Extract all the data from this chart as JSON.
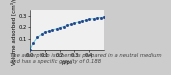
{
  "title": "",
  "xlabel": "p/p₀",
  "ylabel": "Volume adsorbed [cm³/g]",
  "caption": "The adsorption isotherm is prepared in a neutral medium\nand has a specific gravity of 0.188",
  "x_data": [
    0.0,
    0.02,
    0.05,
    0.08,
    0.1,
    0.13,
    0.15,
    0.18,
    0.2,
    0.23,
    0.25,
    0.28,
    0.3,
    0.33,
    0.35,
    0.38,
    0.4,
    0.43,
    0.45,
    0.48,
    0.5
  ],
  "y_data": [
    0.0,
    0.06,
    0.11,
    0.14,
    0.155,
    0.165,
    0.175,
    0.185,
    0.195,
    0.205,
    0.215,
    0.225,
    0.235,
    0.245,
    0.253,
    0.261,
    0.268,
    0.274,
    0.279,
    0.283,
    0.287
  ],
  "line_color": "#66ccdd",
  "marker_color": "#224488",
  "marker": "s",
  "xlim": [
    0,
    0.5
  ],
  "ylim": [
    0,
    0.35
  ],
  "xticks": [
    0,
    0.1,
    0.2,
    0.3,
    0.4
  ],
  "yticks": [
    0.1,
    0.2,
    0.3
  ],
  "bg_color": "#f0f0f0",
  "fig_color": "#cccccc",
  "caption_fontsize": 3.8,
  "axis_label_fontsize": 4.0,
  "tick_fontsize": 3.8
}
